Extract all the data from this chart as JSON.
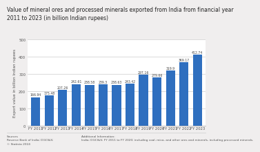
{
  "title": "Value of mineral ores and processed minerals exported from India from financial year\n2011 to 2023 (in billion Indian rupees)",
  "categories": [
    "FY 2011",
    "FY 2012",
    "FY 2013",
    "FY 2014",
    "FY 2015",
    "FY 2016",
    "FY 2017",
    "FY 2018",
    "FY 2019",
    "FY 2020",
    "FY 2021",
    "FY 2022",
    "FY 2023"
  ],
  "values": [
    166.94,
    175.48,
    207.26,
    242.61,
    238.58,
    239.3,
    238.63,
    243.42,
    297.16,
    279.66,
    319.9,
    369.17,
    412.74
  ],
  "bar_color": "#2F6FBF",
  "ylabel": "Export value in billion Indian rupees",
  "ylim": [
    0,
    500
  ],
  "yticks": [
    0,
    100,
    200,
    300,
    400,
    500
  ],
  "bg_color": "#f0eeee",
  "plot_bg_color": "#ffffff",
  "title_fontsize": 5.5,
  "label_fontsize": 4.0,
  "tick_fontsize": 3.8,
  "value_fontsize": 3.3,
  "sources_text": "Sources\nReserve Bank of India; DGCI&S;\n© Statista 2024",
  "additional_text": "Additional Information:\nIndia; DGCI&S; FY 2011 to FY 2020; including coal, mica, and other ores and minerals, including processed minerals."
}
